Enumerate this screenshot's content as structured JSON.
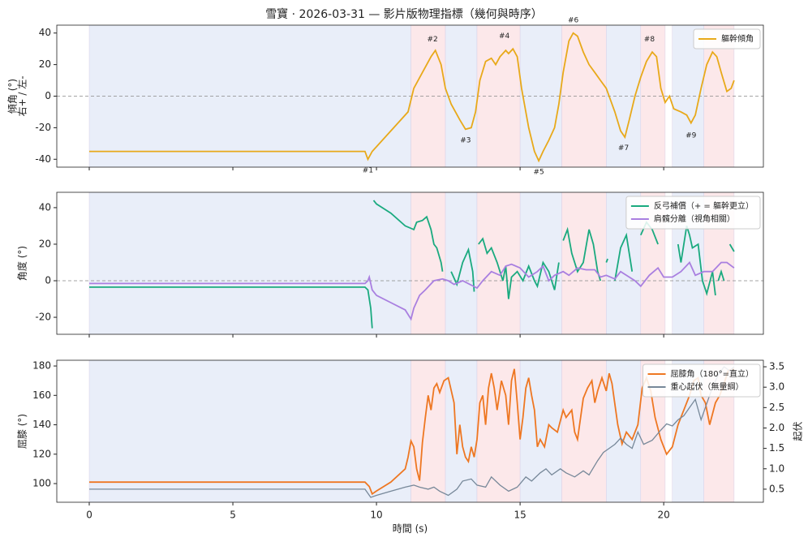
{
  "chart_data": [
    {
      "type": "line",
      "title": "雪寶 · 2026-03-31 — 影片版物理指標（幾何與時序）",
      "ylabel": [
        "傾角 (°)",
        "右+ / 左-"
      ],
      "xlim": [
        -1.13,
        23.47
      ],
      "ylim": [
        -45,
        45
      ],
      "yticks": [
        -40,
        -20,
        0,
        20,
        40
      ],
      "hline": 0,
      "legend": "upper right",
      "phases": [
        {
          "start": 0,
          "end": 11.2,
          "color": "#e9eef9"
        },
        {
          "start": 11.2,
          "end": 12.4,
          "color": "#fce8ea"
        },
        {
          "start": 12.4,
          "end": 13.5,
          "color": "#e9eef9"
        },
        {
          "start": 13.5,
          "end": 15.0,
          "color": "#fce8ea"
        },
        {
          "start": 15.0,
          "end": 16.45,
          "color": "#e9eef9"
        },
        {
          "start": 16.45,
          "end": 18.0,
          "color": "#fce8ea"
        },
        {
          "start": 18.0,
          "end": 19.2,
          "color": "#e9eef9"
        },
        {
          "start": 19.2,
          "end": 20.05,
          "color": "#fce8ea"
        },
        {
          "start": 20.3,
          "end": 21.4,
          "color": "#e9eef9"
        },
        {
          "start": 21.4,
          "end": 22.45,
          "color": "#fce8ea"
        }
      ],
      "series": [
        {
          "name": "軀幹傾角",
          "color": "#e8a91a",
          "x": [
            0,
            9.6,
            9.7,
            9.85,
            11.1,
            11.3,
            11.6,
            11.9,
            12.05,
            12.25,
            12.4,
            12.6,
            12.9,
            13.1,
            13.3,
            13.45,
            13.6,
            13.8,
            14.0,
            14.15,
            14.3,
            14.5,
            14.6,
            14.75,
            14.9,
            15.05,
            15.3,
            15.5,
            15.65,
            15.8,
            16.0,
            16.2,
            16.35,
            16.5,
            16.7,
            16.85,
            17.0,
            17.2,
            17.4,
            17.6,
            17.8,
            18.0,
            18.3,
            18.5,
            18.65,
            18.8,
            19.0,
            19.2,
            19.4,
            19.6,
            19.75,
            19.9,
            20.05,
            20.2,
            20.35,
            20.6,
            20.8,
            20.95,
            21.1,
            21.3,
            21.5,
            21.7,
            21.85,
            22.0,
            22.2,
            22.35,
            22.45
          ],
          "values": [
            -35,
            -35,
            -40,
            -35,
            -10,
            5,
            15,
            25,
            29,
            20,
            5,
            -5,
            -15,
            -21,
            -20,
            -10,
            10,
            22,
            24,
            20,
            25,
            29,
            27,
            30,
            25,
            5,
            -20,
            -35,
            -41,
            -35,
            -28,
            -20,
            -5,
            15,
            35,
            40,
            38,
            28,
            20,
            15,
            10,
            5,
            -10,
            -22,
            -26,
            -15,
            0,
            12,
            22,
            28,
            25,
            5,
            -4,
            0,
            -8,
            -10,
            -12,
            -17,
            -12,
            5,
            20,
            28,
            25,
            15,
            3,
            5,
            10
          ]
        }
      ],
      "annotations": [
        {
          "text": "#1",
          "x": 9.7,
          "y": -47
        },
        {
          "text": "#2",
          "x": 11.95,
          "y": 36
        },
        {
          "text": "#3",
          "x": 13.1,
          "y": -28
        },
        {
          "text": "#4",
          "x": 14.45,
          "y": 38
        },
        {
          "text": "#5",
          "x": 15.65,
          "y": -48
        },
        {
          "text": "#6",
          "x": 16.85,
          "y": 48
        },
        {
          "text": "#7",
          "x": 18.6,
          "y": -33
        },
        {
          "text": "#8",
          "x": 19.5,
          "y": 36
        },
        {
          "text": "#9",
          "x": 20.95,
          "y": -25
        }
      ]
    },
    {
      "type": "line",
      "ylabel": "角度 (°)",
      "xlim": [
        -1.13,
        23.47
      ],
      "ylim": [
        -29.3,
        48.4
      ],
      "yticks": [
        -20,
        0,
        20,
        40
      ],
      "hline": 0,
      "legend": "upper right",
      "series": [
        {
          "name": "反弓補償（+ = 軀幹更立）",
          "color": "#1aaa7f",
          "x": [
            0,
            9.6,
            9.7,
            9.8,
            9.85,
            9.87,
            9.9,
            10.0,
            10.5,
            11.0,
            11.3,
            11.4,
            11.6,
            11.75,
            11.9,
            12.0,
            12.1,
            12.25,
            12.3,
            12.45,
            12.6,
            12.8,
            13.0,
            13.2,
            13.35,
            13.4,
            13.47,
            13.55,
            13.7,
            13.85,
            14.0,
            14.2,
            14.4,
            14.5,
            14.6,
            14.7,
            14.9,
            15.1,
            15.3,
            15.5,
            15.6,
            15.8,
            16.0,
            16.2,
            16.35,
            16.42,
            16.5,
            16.65,
            16.8,
            17.0,
            17.2,
            17.4,
            17.55,
            17.7,
            17.8,
            17.9,
            18.0,
            18.05,
            18.15,
            18.3,
            18.5,
            18.7,
            18.9,
            19.05,
            19.2,
            19.4,
            19.6,
            19.8,
            20.2,
            20.5,
            20.6,
            20.8,
            20.9,
            21.0,
            21.2,
            21.35,
            21.5,
            21.7,
            21.8,
            21.85,
            21.9,
            22.0,
            22.1,
            22.2,
            22.3,
            22.45
          ],
          "values": [
            -3.5,
            -3.5,
            -5,
            -15,
            -26,
            null,
            44,
            42,
            37,
            30,
            28,
            32,
            33,
            35,
            28,
            20,
            18,
            10,
            5,
            null,
            5,
            -2,
            10,
            17,
            5,
            -6,
            null,
            20,
            23,
            15,
            18,
            10,
            0,
            8,
            -10,
            2,
            5,
            0,
            8,
            0,
            -3,
            10,
            5,
            -5,
            10,
            null,
            22,
            28,
            15,
            5,
            10,
            28,
            20,
            5,
            0,
            null,
            10,
            12,
            null,
            0,
            18,
            25,
            5,
            null,
            25,
            32,
            28,
            20,
            null,
            20,
            10,
            30,
            25,
            18,
            20,
            0,
            -7,
            5,
            -8,
            null,
            0,
            5,
            0,
            null,
            20,
            16
          ]
        },
        {
          "name": "肩髖分離（視角相關）",
          "color": "#a97fe0",
          "x": [
            0,
            9.6,
            9.7,
            9.75,
            9.85,
            10.0,
            10.5,
            11.0,
            11.2,
            11.3,
            11.5,
            11.7,
            12.0,
            12.3,
            12.5,
            12.7,
            13.0,
            13.5,
            13.7,
            14.0,
            14.3,
            14.5,
            14.7,
            15.0,
            15.3,
            15.6,
            15.8,
            16.0,
            16.2,
            16.5,
            16.7,
            17.0,
            17.3,
            17.6,
            17.8,
            18.0,
            18.3,
            18.5,
            18.7,
            19.0,
            19.2,
            19.5,
            19.8,
            20.0,
            20.3,
            20.6,
            20.9,
            21.1,
            21.4,
            21.7,
            22.0,
            22.2,
            22.45
          ],
          "values": [
            -1.5,
            -1.5,
            0,
            2,
            -5,
            -8,
            -12,
            -16,
            -21,
            -15,
            -8,
            -5,
            0,
            1,
            0,
            -2,
            0,
            -4,
            0,
            5,
            3,
            8,
            9,
            7,
            2,
            5,
            8,
            0,
            3,
            5,
            3,
            7,
            6,
            6,
            2,
            3,
            1,
            5,
            3,
            0,
            -3,
            3,
            7,
            2,
            2,
            5,
            10,
            3,
            5,
            5,
            10,
            10,
            7
          ]
        }
      ]
    },
    {
      "type": "line",
      "ylabel": "屈膝 (°)",
      "y2label": "起伏",
      "xlabel": "時間 (s)",
      "xlim": [
        -1.13,
        23.47
      ],
      "xticks": [
        0,
        5,
        10,
        15,
        20
      ],
      "ylim": [
        87.3,
        183.9
      ],
      "yticks": [
        100,
        120,
        140,
        160,
        180
      ],
      "y2lim": [
        0.18,
        3.66
      ],
      "y2ticks": [
        0.5,
        {
          "value": 1,
          "label": "1.0"
        },
        1.5,
        {
          "value": 2,
          "label": "2.0"
        },
        2.5,
        {
          "value": 3,
          "label": "3.0"
        },
        3.5
      ],
      "legend": "upper right",
      "series": [
        {
          "name": "屈膝角（180°=直立）",
          "color": "#ee7722",
          "x": [
            0,
            9.6,
            9.75,
            9.85,
            10.0,
            10.5,
            11.0,
            11.1,
            11.2,
            11.3,
            11.4,
            11.5,
            11.6,
            11.7,
            11.8,
            11.9,
            12.0,
            12.1,
            12.2,
            12.35,
            12.5,
            12.7,
            12.8,
            12.9,
            13.0,
            13.1,
            13.2,
            13.3,
            13.4,
            13.5,
            13.6,
            13.7,
            13.8,
            13.9,
            14.0,
            14.1,
            14.2,
            14.35,
            14.5,
            14.6,
            14.7,
            14.8,
            14.9,
            15.0,
            15.1,
            15.2,
            15.3,
            15.4,
            15.5,
            15.6,
            15.7,
            15.85,
            16.0,
            16.1,
            16.3,
            16.5,
            16.6,
            16.8,
            16.9,
            17.0,
            17.2,
            17.35,
            17.5,
            17.6,
            17.7,
            17.85,
            18.0,
            18.1,
            18.2,
            18.4,
            18.55,
            18.7,
            18.9,
            19.1,
            19.25,
            19.4,
            19.55,
            19.7,
            19.9,
            20.1,
            20.3,
            20.5,
            20.7,
            20.9,
            21.05,
            21.2,
            21.3,
            21.45,
            21.6,
            21.8,
            21.95,
            22.1,
            22.25,
            22.45
          ],
          "values": [
            101,
            101,
            98,
            93,
            95,
            101,
            110,
            118,
            129,
            125,
            110,
            102,
            128,
            145,
            160,
            150,
            165,
            168,
            162,
            170,
            172,
            155,
            120,
            140,
            125,
            118,
            115,
            125,
            118,
            130,
            155,
            160,
            140,
            165,
            175,
            165,
            150,
            170,
            160,
            140,
            170,
            178,
            155,
            130,
            145,
            165,
            172,
            160,
            150,
            125,
            130,
            125,
            140,
            138,
            135,
            150,
            145,
            150,
            135,
            130,
            158,
            165,
            170,
            155,
            163,
            172,
            163,
            175,
            168,
            140,
            127,
            135,
            130,
            140,
            165,
            172,
            163,
            145,
            130,
            120,
            125,
            140,
            150,
            160,
            170,
            172,
            160,
            155,
            140,
            155,
            160,
            168,
            177,
            178
          ]
        },
        {
          "name": "重心起伏（無量綱）",
          "color": "#778899",
          "axis": "y2",
          "x": [
            0,
            9.6,
            9.8,
            10.0,
            10.5,
            11.0,
            11.3,
            11.5,
            11.8,
            12.0,
            12.2,
            12.5,
            12.8,
            13.0,
            13.3,
            13.5,
            13.8,
            14.0,
            14.3,
            14.6,
            14.9,
            15.2,
            15.4,
            15.7,
            15.9,
            16.1,
            16.4,
            16.6,
            16.9,
            17.2,
            17.4,
            17.7,
            17.9,
            18.1,
            18.3,
            18.5,
            18.7,
            18.9,
            19.1,
            19.3,
            19.6,
            19.9,
            20.1,
            20.3,
            20.5,
            20.7,
            20.9,
            21.1,
            21.3,
            21.5,
            21.7,
            21.9,
            22.1,
            22.3,
            22.45
          ],
          "values": [
            0.5,
            0.5,
            0.3,
            0.35,
            0.45,
            0.55,
            0.6,
            0.55,
            0.5,
            0.55,
            0.45,
            0.35,
            0.5,
            0.7,
            0.75,
            0.6,
            0.55,
            0.8,
            0.6,
            0.45,
            0.55,
            0.8,
            0.7,
            0.9,
            1.0,
            0.85,
            1.0,
            0.9,
            0.8,
            0.95,
            0.85,
            1.2,
            1.4,
            1.5,
            1.6,
            1.75,
            1.6,
            1.5,
            1.9,
            1.6,
            1.7,
            1.95,
            2.1,
            2.05,
            2.2,
            2.3,
            2.5,
            2.7,
            2.2,
            2.6,
            3.0,
            3.3,
            3.5,
            3.4,
            3.5
          ]
        }
      ]
    }
  ]
}
